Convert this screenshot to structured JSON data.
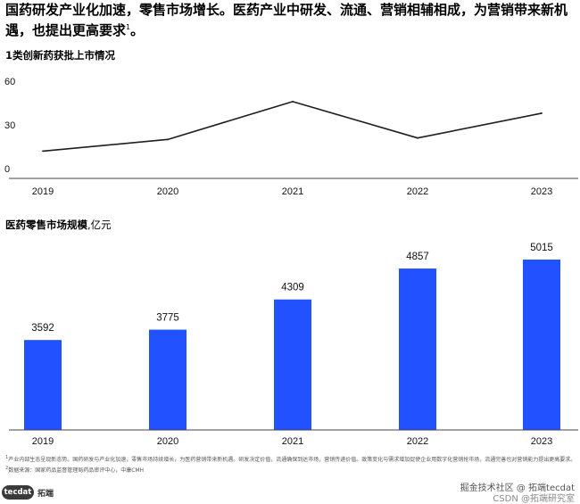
{
  "headline": {
    "text": "国药研发产业化加速，零售市场增长。医药产业中研发、流通、营销相辅相成，为营销带来新机遇，也提出更高要求",
    "footnote_ref": "1",
    "end": "。"
  },
  "line_chart_title": "1类创新药获批上市情况",
  "bar_chart_title": {
    "main": "医药零售市场规模",
    "unit": ",亿元"
  },
  "chart_data": [
    {
      "type": "line",
      "title": "1类创新药获批上市情况",
      "x": [
        "2019",
        "2020",
        "2021",
        "2022",
        "2023"
      ],
      "series": [
        {
          "values": [
            12,
            20,
            46,
            21,
            38
          ]
        }
      ],
      "ylim": [
        0,
        60
      ],
      "yticks": [
        "0",
        "30",
        "60"
      ],
      "grid": false,
      "color": "#1a1f26"
    },
    {
      "type": "bar",
      "title": "医药零售市场规模,亿元",
      "categories": [
        "2019",
        "2020",
        "2021",
        "2022",
        "2023"
      ],
      "values": [
        3592,
        3775,
        4309,
        4857,
        5015
      ],
      "data_labels": [
        "3592",
        "3775",
        "4309",
        "4857",
        "5015"
      ],
      "baseline": 2000,
      "color": "#2251ff"
    }
  ],
  "footnotes": [
    {
      "ref": "1",
      "text": "产业内部生态呈现新态势。国药研发与产业化加速，零售市场持续增长，为医药营销带来新机遇。研发决定价值，流通确保到达市场，营销传递价值。政策变化与需求增加促使企业用数字化营销抢市场，流通完善也对营销能力提出更高要求。"
    },
    {
      "ref": "2",
      "text": "数据来源：国家药品监督管理局药品审评中心，中康CMH"
    }
  ],
  "brand": {
    "logo": "tecdat",
    "name": "拓端"
  },
  "watermark": {
    "line1": "掘金技术社区 @ 拓端tecdat",
    "line2": "CSDN @拓端研究室"
  }
}
